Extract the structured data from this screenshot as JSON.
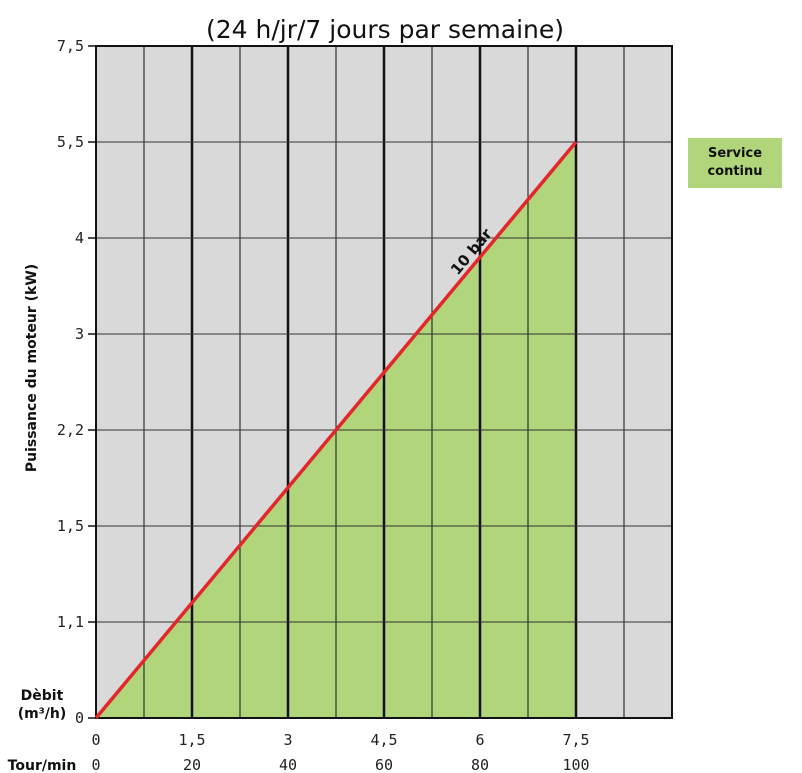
{
  "chart_data": {
    "type": "area",
    "title": "(24 h/jr/7 jours par semaine)",
    "ylabel": "Puissance du moteur (kW)",
    "y_ticks": [
      "0",
      "1,1",
      "1,5",
      "2,2",
      "3",
      "4",
      "5,5",
      "7,5"
    ],
    "x_rows": [
      {
        "label": "Dèbit\n(m³/h)",
        "ticks": [
          "0",
          "1,5",
          "3",
          "4,5",
          "6",
          "7,5"
        ]
      },
      {
        "label": "Tour/min",
        "ticks": [
          "0",
          "20",
          "40",
          "60",
          "80",
          "100"
        ]
      }
    ],
    "series": [
      {
        "name": "10 bar",
        "x_debit": [
          0,
          7.5
        ],
        "y_power_kw": [
          0,
          5.5
        ],
        "color": "#e3262a"
      }
    ],
    "fill_color": "#b0d57a",
    "grid": true,
    "legend": {
      "label": "Service\ncontinu",
      "color": "#b0d57a",
      "position": "right"
    }
  },
  "colors": {
    "plot_bg": "#d9d9da",
    "grid": "#111111",
    "line": "#e3262a",
    "fill": "#b0d57a"
  }
}
